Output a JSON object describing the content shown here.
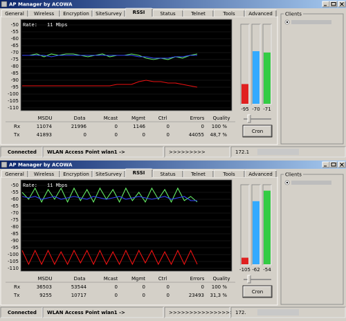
{
  "windows": [
    {
      "title": "AP Manager by ACOWA",
      "tabs": [
        "General",
        "Wireless",
        "Encryption",
        "SiteSurvey",
        "RSSI",
        "Status",
        "Telnet",
        "Tools",
        "Advanced"
      ],
      "chart": {
        "type": "line",
        "rate_label": "Rate:",
        "rate_value": "11 Mbps",
        "ylim": [
          -112,
          -46
        ],
        "yticks": [
          -50,
          -55,
          -60,
          -65,
          -70,
          -75,
          -80,
          -85,
          -90,
          -95,
          -100,
          -105,
          -110
        ],
        "series": [
          {
            "color": "#66ee66",
            "values": [
              -72,
              -72,
              -71,
              -73,
              -71,
              -72,
              -71,
              -71,
              -72,
              -73,
              -72,
              -71,
              -73,
              -72,
              -72,
              -71,
              -72,
              -74,
              -75,
              -74,
              -75,
              -73,
              -74,
              -72,
              -71
            ]
          },
          {
            "color": "#3344ff",
            "values": [
              -72,
              -72,
              -72,
              -72,
              -73,
              -72,
              -72,
              -72,
              -72,
              -72,
              -72,
              -72,
              -72,
              -72,
              -72,
              -72,
              -73,
              -73,
              -74,
              -74,
              -74,
              -73,
              -73,
              -72,
              -72
            ]
          },
          {
            "color": "#ee1111",
            "values": [
              -94,
              -94,
              -94,
              -94,
              -94,
              -94,
              -94,
              -94,
              -94,
              -94,
              -94,
              -94,
              -94,
              -93,
              -93,
              -93,
              -91,
              -90,
              -91,
              -91,
              -92,
              -92,
              -93,
              -94,
              -95
            ]
          }
        ]
      },
      "meters": {
        "ylim": [
          -110,
          -50
        ],
        "bars": [
          {
            "color": "#e02020",
            "value": -95
          },
          {
            "color": "#33aaff",
            "value": -70
          },
          {
            "color": "#33cc44",
            "value": -71
          }
        ]
      },
      "button": "Cron",
      "stats": {
        "columns": [
          "MSDU",
          "Data",
          "Mcast",
          "Mgmt",
          "Ctrl",
          "Errors",
          "Quality"
        ],
        "rows": [
          {
            "label": "Rx",
            "cells": [
              "11074",
              "21996",
              "0",
              "1146",
              "0",
              "0",
              "100 %"
            ]
          },
          {
            "label": "Tx",
            "cells": [
              "41893",
              "0",
              "0",
              "0",
              "0",
              "44055",
              "48,7 %"
            ]
          }
        ]
      },
      "clients_label": "Clients",
      "status": [
        "Connected",
        "WLAN Access Point wlan1 ->",
        ">>>>>>>>>",
        "172.1"
      ]
    },
    {
      "title": "AP Manager by ACOWA",
      "tabs": [
        "General",
        "Wireless",
        "Encryption",
        "SiteSurvey",
        "RSSI",
        "Status",
        "Telnet",
        "Tools",
        "Advanced"
      ],
      "chart": {
        "type": "line",
        "rate_label": "Rate:",
        "rate_value": "11 Mbps",
        "ylim": [
          -112,
          -46
        ],
        "yticks": [
          -50,
          -55,
          -60,
          -65,
          -70,
          -75,
          -80,
          -85,
          -90,
          -95,
          -100,
          -105,
          -110
        ],
        "series": [
          {
            "color": "#66ee66",
            "values": [
              -55,
              -60,
              -52,
              -62,
              -53,
              -60,
              -52,
              -62,
              -52,
              -61,
              -53,
              -62,
              -52,
              -60,
              -53,
              -62,
              -52,
              -61,
              -55,
              -62,
              -52,
              -60,
              -53,
              -62,
              -52,
              -61,
              -58,
              -62
            ]
          },
          {
            "color": "#3344ff",
            "values": [
              -58,
              -59,
              -58,
              -60,
              -59,
              -58,
              -60,
              -59,
              -58,
              -59,
              -60,
              -58,
              -59,
              -60,
              -59,
              -58,
              -60,
              -59,
              -58,
              -59,
              -60,
              -59,
              -58,
              -60,
              -59,
              -58,
              -61,
              -61
            ]
          },
          {
            "color": "#ee1111",
            "values": [
              -97,
              -107,
              -97,
              -107,
              -97,
              -107,
              -98,
              -107,
              -97,
              -106,
              -97,
              -107,
              -97,
              -107,
              -98,
              -107,
              -97,
              -107,
              -97,
              -106,
              -97,
              -107,
              -98,
              -107,
              -97,
              -107,
              -97,
              -107
            ]
          }
        ]
      },
      "meters": {
        "ylim": [
          -110,
          -50
        ],
        "bars": [
          {
            "color": "#e02020",
            "value": -105
          },
          {
            "color": "#33aaff",
            "value": -62
          },
          {
            "color": "#33cc44",
            "value": -54
          }
        ]
      },
      "button": "Cron",
      "stats": {
        "columns": [
          "MSDU",
          "Data",
          "Mcast",
          "Mgmt",
          "Ctrl",
          "Errors",
          "Quality"
        ],
        "rows": [
          {
            "label": "Rx",
            "cells": [
              "36503",
              "53544",
              "0",
              "0",
              "0",
              "0",
              "100 %"
            ]
          },
          {
            "label": "Tx",
            "cells": [
              "9255",
              "10717",
              "0",
              "0",
              "0",
              "23493",
              "31,3 %"
            ]
          }
        ]
      },
      "clients_label": "Clients",
      "status": [
        "Connected",
        "WLAN Access Point wlan1 ->",
        ">>>>>>>>>>>>>>>>>>>>>>>>>",
        "172."
      ]
    }
  ]
}
